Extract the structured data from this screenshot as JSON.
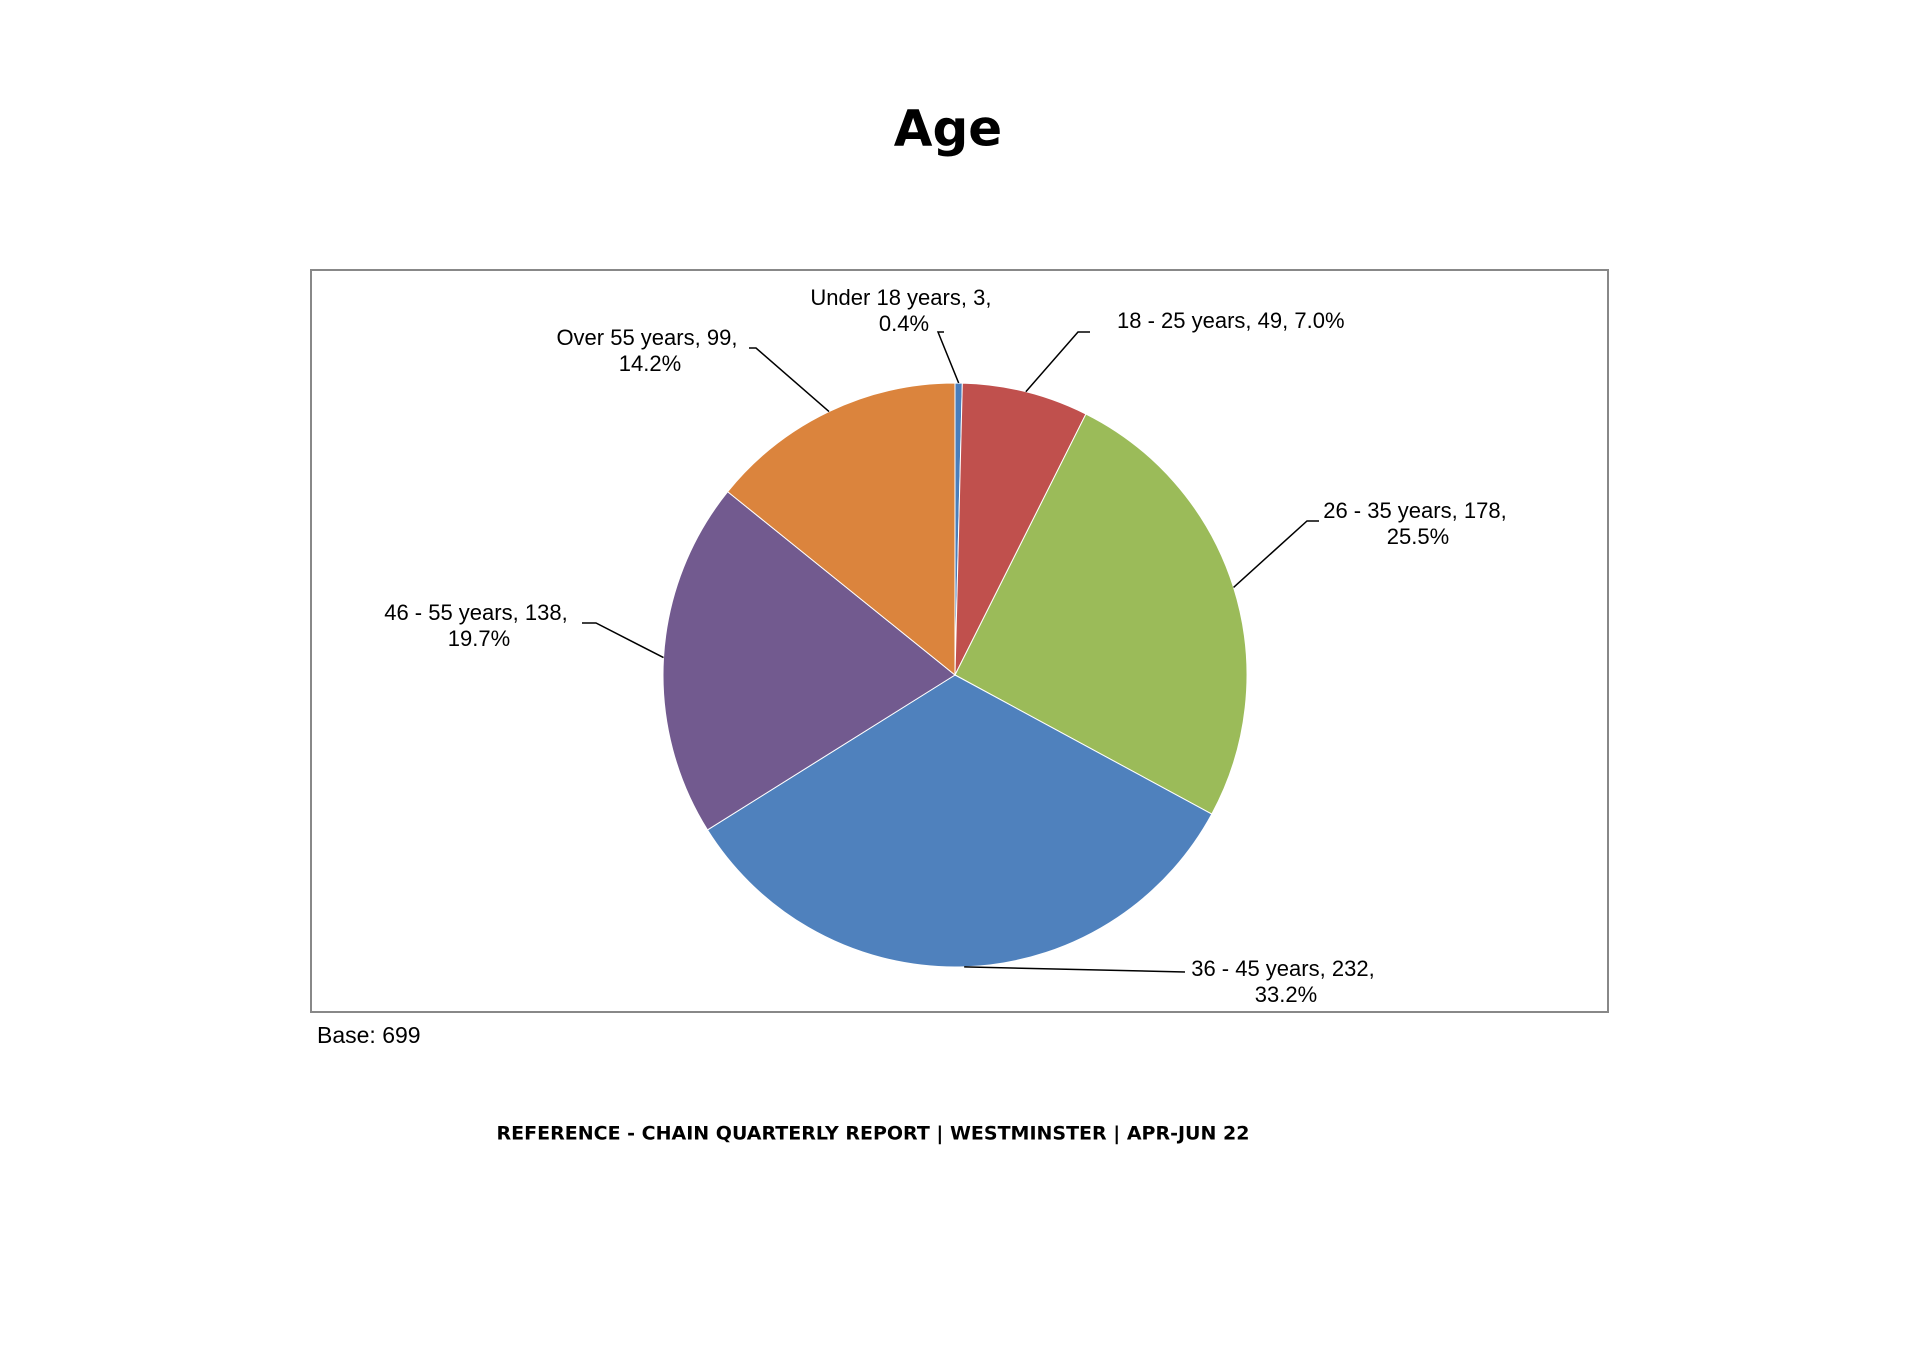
{
  "chart_data": {
    "type": "pie",
    "title": "Age",
    "categories": [
      "Under 18 years",
      "18 - 25 years",
      "26 - 35 years",
      "36 - 45 years",
      "46 - 55 years",
      "Over 55 years"
    ],
    "counts": [
      3,
      49,
      178,
      232,
      138,
      99
    ],
    "values": [
      0.4,
      7.0,
      25.5,
      33.2,
      19.7,
      14.2
    ],
    "value_labels": [
      "0.4%",
      "7.0%",
      "25.5%",
      "33.2%",
      "19.7%",
      "14.2%"
    ],
    "separator": ", ",
    "colors": [
      "#4a7ebb",
      "#c0504d",
      "#9bbb59",
      "#4f81bd",
      "#725a8f",
      "#db843d"
    ],
    "base": "Base: 699",
    "footer": "REFERENCE - CHAIN QUARTERLY REPORT | WESTMINSTER | APR-JUN 22"
  }
}
